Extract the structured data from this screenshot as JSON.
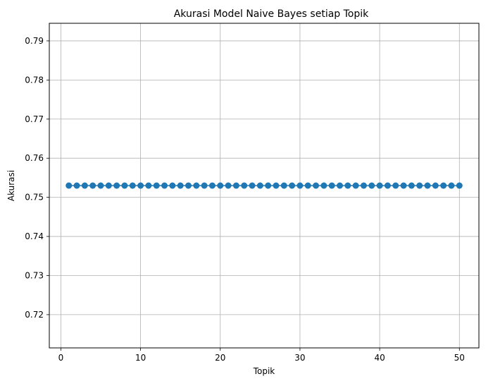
{
  "chart_data": {
    "type": "line",
    "title": "Akurasi Model Naive Bayes setiap Topik",
    "xlabel": "Topik",
    "ylabel": "Akurasi",
    "xlim": [
      -1.45,
      52.45
    ],
    "ylim": [
      0.7115,
      0.7945
    ],
    "xticks": [
      0,
      10,
      20,
      30,
      40,
      50
    ],
    "xtick_labels": [
      "0",
      "10",
      "20",
      "30",
      "40",
      "50"
    ],
    "yticks": [
      0.72,
      0.73,
      0.74,
      0.75,
      0.76,
      0.77,
      0.78,
      0.79
    ],
    "ytick_labels": [
      "0.72",
      "0.73",
      "0.74",
      "0.75",
      "0.76",
      "0.77",
      "0.78",
      "0.79"
    ],
    "grid": true,
    "marker": "circle",
    "color": "#1f77b4",
    "series": [
      {
        "x": [
          1,
          2,
          3,
          4,
          5,
          6,
          7,
          8,
          9,
          10,
          11,
          12,
          13,
          14,
          15,
          16,
          17,
          18,
          19,
          20,
          21,
          22,
          23,
          24,
          25,
          26,
          27,
          28,
          29,
          30,
          31,
          32,
          33,
          34,
          35,
          36,
          37,
          38,
          39,
          40,
          41,
          42,
          43,
          44,
          45,
          46,
          47,
          48,
          49,
          50
        ],
        "values": [
          0.753,
          0.753,
          0.753,
          0.753,
          0.753,
          0.753,
          0.753,
          0.753,
          0.753,
          0.753,
          0.753,
          0.753,
          0.753,
          0.753,
          0.753,
          0.753,
          0.753,
          0.753,
          0.753,
          0.753,
          0.753,
          0.753,
          0.753,
          0.753,
          0.753,
          0.753,
          0.753,
          0.753,
          0.753,
          0.753,
          0.753,
          0.753,
          0.753,
          0.753,
          0.753,
          0.753,
          0.753,
          0.753,
          0.753,
          0.753,
          0.753,
          0.753,
          0.753,
          0.753,
          0.753,
          0.753,
          0.753,
          0.753,
          0.753,
          0.753
        ]
      }
    ]
  }
}
